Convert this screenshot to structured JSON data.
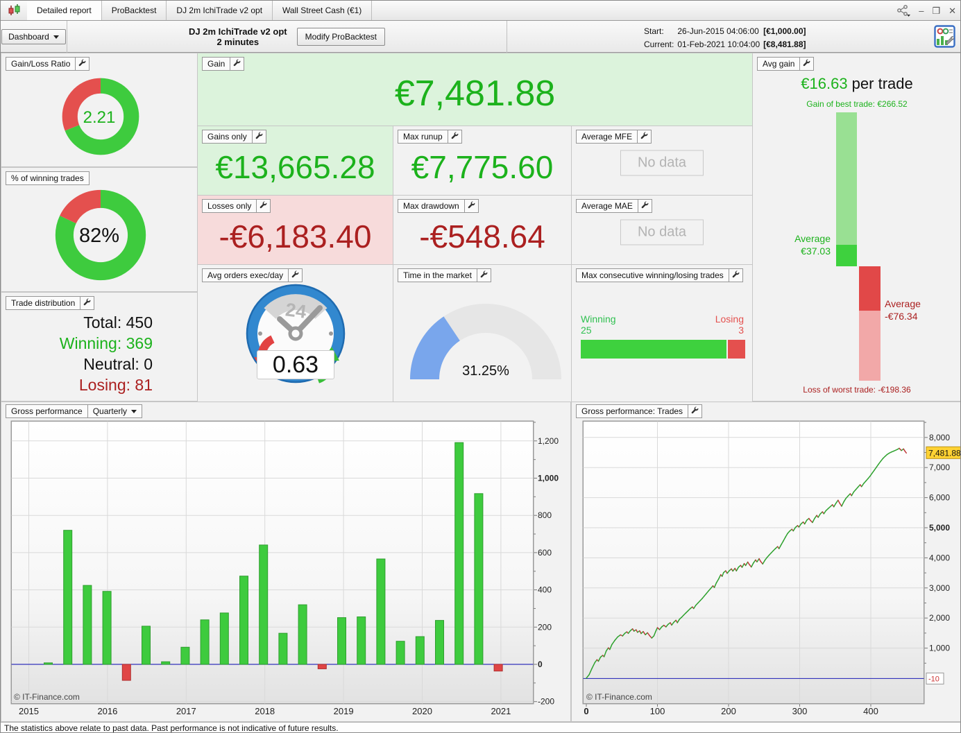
{
  "window": {
    "tabs": [
      "Detailed report",
      "ProBacktest",
      "DJ 2m IchiTrade v2 opt",
      "Wall Street Cash (€1)"
    ],
    "controls": {
      "minimize": "–",
      "maximize": "❒",
      "close": "✕"
    }
  },
  "header": {
    "dashboard_label": "Dashboard",
    "title_line1": "DJ 2m IchiTrade v2 opt",
    "title_line2": "2 minutes",
    "modify_button": "Modify ProBacktest",
    "start_label": "Start:",
    "start_value": "26-Jun-2015 04:06:00",
    "start_capital": "[€1,000.00]",
    "current_label": "Current:",
    "current_value": "01-Feb-2021 10:04:00",
    "current_capital": "[€8,481.88]"
  },
  "panels": {
    "gain_loss_ratio": {
      "title": "Gain/Loss Ratio",
      "value": "2.21",
      "ratio": 2.21
    },
    "winning_trades_pct": {
      "title": "% of winning trades",
      "value": "82%",
      "pct": 82
    },
    "trade_distribution": {
      "title": "Trade distribution",
      "rows": [
        {
          "label": "Total: 450",
          "color": "#111111"
        },
        {
          "label": "Winning: 369",
          "color": "#1cb21c"
        },
        {
          "label": "Neutral: 0",
          "color": "#111111"
        },
        {
          "label": "Losing: 81",
          "color": "#ab2020"
        }
      ]
    },
    "gain": {
      "title": "Gain",
      "value": "€7,481.88"
    },
    "gains_only": {
      "title": "Gains only",
      "value": "€13,665.28"
    },
    "max_runup": {
      "title": "Max runup",
      "value": "€7,775.60"
    },
    "average_mfe": {
      "title": "Average MFE",
      "no_data": "No data"
    },
    "losses_only": {
      "title": "Losses only",
      "value": "-€6,183.40"
    },
    "max_drawdown": {
      "title": "Max drawdown",
      "value": "-€548.64"
    },
    "average_mae": {
      "title": "Average MAE",
      "no_data": "No data"
    },
    "avg_orders": {
      "title": "Avg orders exec/day",
      "value": "0.63",
      "clock_label": "24"
    },
    "time_in_market": {
      "title": "Time in the market",
      "value": "31.25%",
      "pct": 31.25
    },
    "max_consecutive": {
      "title": "Max consecutive winning/losing trades",
      "winning_label": "Winning",
      "winning_value": "25",
      "winning": 25,
      "losing_label": "Losing",
      "losing_value": "3",
      "losing": 3
    },
    "avg_gain": {
      "title": "Avg gain",
      "value": "€16.63",
      "suffix": " per trade",
      "best_label": "Gain of best trade: €266.52",
      "best": 266.52,
      "avg_win_label1": "Average",
      "avg_win_label2": "€37.03",
      "avg_win": 37.03,
      "avg_loss_label1": "Average",
      "avg_loss_label2": "-€76.34",
      "avg_loss": -76.34,
      "worst_label": "Loss of worst trade: -€198.36",
      "worst": -198.36
    }
  },
  "colors": {
    "green_value": "#1cb21c",
    "red_value": "#ab2020",
    "donut_green": "#3ecb3e",
    "donut_red": "#e4504e",
    "gauge_blue": "#79a6ec",
    "gauge_gray": "#e6e6e6",
    "bar_green": "#3ecb3e",
    "bar_green_edge": "#2f9e2f",
    "bar_red": "#e04545",
    "bar_red_edge": "#b03030",
    "zero_line": "#3333bb",
    "grid": "#d9d9d9",
    "equity_up": "#2ea12e",
    "equity_down": "#bf3a3a",
    "current_label_bg": "#ffd233",
    "current_label_border": "#bb9210"
  },
  "chart_data": [
    {
      "type": "bar",
      "title": "Gross performance",
      "period_selector": "Quarterly",
      "categories": [
        "2015 Q2",
        "2015 Q3",
        "2015 Q4",
        "2016 Q1",
        "2016 Q2",
        "2016 Q3",
        "2016 Q4",
        "2017 Q1",
        "2017 Q2",
        "2017 Q3",
        "2017 Q4",
        "2018 Q1",
        "2018 Q2",
        "2018 Q3",
        "2018 Q4",
        "2019 Q1",
        "2019 Q2",
        "2019 Q3",
        "2019 Q4",
        "2020 Q1",
        "2020 Q2",
        "2020 Q3",
        "2020 Q4",
        "2021 Q1"
      ],
      "values": [
        8,
        720,
        424,
        392,
        -86,
        205,
        14,
        92,
        239,
        276,
        474,
        641,
        167,
        320,
        -24,
        251,
        255,
        566,
        124,
        149,
        236,
        1191,
        917,
        -36
      ],
      "x_axis_labels": [
        "2015",
        "2016",
        "2017",
        "2018",
        "2019",
        "2020",
        "2021"
      ],
      "y_ticks": [
        -200,
        0,
        200,
        400,
        600,
        800,
        1000,
        1200
      ],
      "bold_y_ticks": [
        0,
        1000
      ],
      "ylim": [
        -210,
        1310
      ],
      "watermark": "© IT-Finance.com"
    },
    {
      "type": "line",
      "title": "Gross performance: Trades",
      "xlabel": "Trades",
      "x_ticks": [
        0,
        100,
        200,
        300,
        400
      ],
      "bold_x_ticks": [
        0
      ],
      "y_ticks": [
        1000,
        2000,
        3000,
        4000,
        5000,
        6000,
        7000,
        8000
      ],
      "bold_y_ticks": [
        5000
      ],
      "ylim": [
        -800,
        8550
      ],
      "xlim": [
        0,
        478
      ],
      "current_value_label": "7,481.88",
      "current_value": 7481.88,
      "baseline_label": "-10",
      "baseline_value": -10,
      "watermark": "© IT-Finance.com",
      "points": [
        [
          0,
          0
        ],
        [
          4,
          120
        ],
        [
          8,
          330
        ],
        [
          12,
          520
        ],
        [
          15,
          615
        ],
        [
          17,
          565
        ],
        [
          20,
          700
        ],
        [
          23,
          760
        ],
        [
          25,
          715
        ],
        [
          28,
          905
        ],
        [
          31,
          1010
        ],
        [
          33,
          955
        ],
        [
          36,
          1120
        ],
        [
          40,
          1255
        ],
        [
          44,
          1370
        ],
        [
          48,
          1440
        ],
        [
          51,
          1405
        ],
        [
          54,
          1490
        ],
        [
          57,
          1540
        ],
        [
          59,
          1490
        ],
        [
          62,
          1580
        ],
        [
          65,
          1640
        ],
        [
          67,
          1565
        ],
        [
          70,
          1610
        ],
        [
          72,
          1525
        ],
        [
          75,
          1575
        ],
        [
          77,
          1485
        ],
        [
          80,
          1550
        ],
        [
          83,
          1445
        ],
        [
          86,
          1510
        ],
        [
          89,
          1415
        ],
        [
          92,
          1335
        ],
        [
          95,
          1405
        ],
        [
          98,
          1580
        ],
        [
          100,
          1680
        ],
        [
          103,
          1615
        ],
        [
          106,
          1705
        ],
        [
          109,
          1760
        ],
        [
          112,
          1705
        ],
        [
          115,
          1790
        ],
        [
          118,
          1845
        ],
        [
          120,
          1765
        ],
        [
          123,
          1860
        ],
        [
          126,
          1925
        ],
        [
          128,
          1845
        ],
        [
          131,
          1960
        ],
        [
          134,
          2025
        ],
        [
          137,
          2100
        ],
        [
          140,
          2170
        ],
        [
          143,
          2240
        ],
        [
          146,
          2310
        ],
        [
          149,
          2370
        ],
        [
          151,
          2315
        ],
        [
          154,
          2425
        ],
        [
          157,
          2500
        ],
        [
          160,
          2575
        ],
        [
          163,
          2650
        ],
        [
          166,
          2735
        ],
        [
          169,
          2820
        ],
        [
          172,
          2905
        ],
        [
          175,
          2985
        ],
        [
          178,
          3070
        ],
        [
          180,
          3015
        ],
        [
          183,
          3175
        ],
        [
          186,
          3295
        ],
        [
          189,
          3440
        ],
        [
          191,
          3385
        ],
        [
          193,
          3510
        ],
        [
          196,
          3570
        ],
        [
          198,
          3485
        ],
        [
          201,
          3570
        ],
        [
          204,
          3635
        ],
        [
          206,
          3560
        ],
        [
          209,
          3650
        ],
        [
          211,
          3565
        ],
        [
          214,
          3690
        ],
        [
          217,
          3750
        ],
        [
          219,
          3685
        ],
        [
          222,
          3810
        ],
        [
          224,
          3745
        ],
        [
          227,
          3860
        ],
        [
          229,
          3785
        ],
        [
          232,
          3695
        ],
        [
          235,
          3830
        ],
        [
          238,
          3930
        ],
        [
          240,
          3865
        ],
        [
          243,
          3970
        ],
        [
          245,
          3885
        ],
        [
          248,
          3795
        ],
        [
          251,
          3915
        ],
        [
          254,
          4010
        ],
        [
          257,
          4090
        ],
        [
          260,
          4165
        ],
        [
          263,
          4240
        ],
        [
          266,
          4310
        ],
        [
          269,
          4375
        ],
        [
          271,
          4305
        ],
        [
          274,
          4435
        ],
        [
          277,
          4560
        ],
        [
          280,
          4690
        ],
        [
          283,
          4810
        ],
        [
          286,
          4890
        ],
        [
          289,
          4950
        ],
        [
          291,
          4895
        ],
        [
          294,
          5010
        ],
        [
          297,
          5070
        ],
        [
          299,
          5025
        ],
        [
          302,
          5130
        ],
        [
          305,
          5190
        ],
        [
          307,
          5125
        ],
        [
          310,
          5250
        ],
        [
          313,
          5310
        ],
        [
          315,
          5245
        ],
        [
          318,
          5175
        ],
        [
          321,
          5310
        ],
        [
          324,
          5410
        ],
        [
          326,
          5345
        ],
        [
          329,
          5460
        ],
        [
          332,
          5530
        ],
        [
          334,
          5465
        ],
        [
          337,
          5570
        ],
        [
          340,
          5635
        ],
        [
          343,
          5700
        ],
        [
          346,
          5765
        ],
        [
          348,
          5695
        ],
        [
          351,
          5815
        ],
        [
          354,
          5915
        ],
        [
          356,
          5825
        ],
        [
          359,
          5715
        ],
        [
          362,
          5860
        ],
        [
          365,
          5975
        ],
        [
          368,
          6055
        ],
        [
          371,
          6130
        ],
        [
          373,
          6065
        ],
        [
          376,
          6190
        ],
        [
          379,
          6270
        ],
        [
          382,
          6350
        ],
        [
          385,
          6430
        ],
        [
          387,
          6365
        ],
        [
          390,
          6470
        ],
        [
          393,
          6550
        ],
        [
          396,
          6630
        ],
        [
          399,
          6715
        ],
        [
          402,
          6815
        ],
        [
          405,
          6915
        ],
        [
          408,
          7015
        ],
        [
          411,
          7115
        ],
        [
          414,
          7210
        ],
        [
          417,
          7300
        ],
        [
          420,
          7370
        ],
        [
          423,
          7435
        ],
        [
          426,
          7480
        ],
        [
          429,
          7515
        ],
        [
          432,
          7545
        ],
        [
          435,
          7575
        ],
        [
          438,
          7610
        ],
        [
          440,
          7640
        ],
        [
          443,
          7565
        ],
        [
          446,
          7620
        ],
        [
          448,
          7545
        ],
        [
          450,
          7482
        ]
      ]
    }
  ],
  "footer": {
    "disclaimer": "The statistics above relate to past data. Past performance is not indicative of future results."
  }
}
